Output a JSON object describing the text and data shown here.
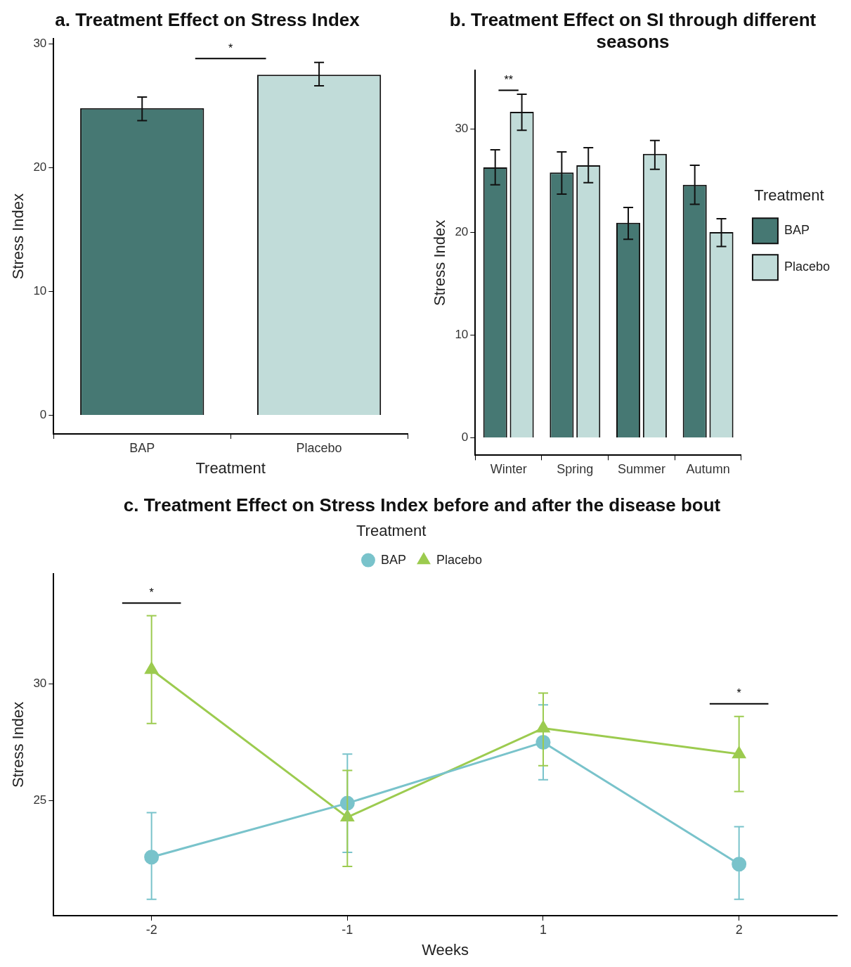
{
  "chart_data": [
    {
      "type": "bar",
      "title": "a. Treatment Effect on Stress Index",
      "xlabel": "Treatment",
      "ylabel": "Stress Index",
      "categories": [
        "BAP",
        "Placebo"
      ],
      "values": [
        24.8,
        27.5
      ],
      "colors": [
        "#467873",
        "#c1dcd9"
      ],
      "errors": [
        [
          23.8,
          25.7
        ],
        [
          26.6,
          28.5
        ]
      ],
      "ylim": [
        -1.5,
        30.4
      ],
      "yticks": [
        0,
        10,
        20,
        30
      ],
      "grid": false,
      "legend": false,
      "annotations": [
        "*"
      ]
    },
    {
      "type": "bar",
      "title": "b. Treatment Effect on SI through different seasons",
      "ylabel": "Stress Index",
      "legend_title": "Treatment",
      "categories": [
        "Winter",
        "Spring",
        "Summer",
        "Autumn"
      ],
      "series": [
        {
          "name": "BAP",
          "color": "#467873",
          "values": [
            26.3,
            25.8,
            20.9,
            24.6
          ],
          "errors": [
            [
              24.6,
              28.0
            ],
            [
              23.7,
              27.8
            ],
            [
              19.3,
              22.4
            ],
            [
              22.7,
              26.5
            ]
          ]
        },
        {
          "name": "Placebo",
          "color": "#c1dcd9",
          "values": [
            31.7,
            26.5,
            27.6,
            20.0
          ],
          "errors": [
            [
              29.9,
              33.4
            ],
            [
              24.8,
              28.2
            ],
            [
              26.1,
              28.9
            ],
            [
              18.6,
              21.3
            ]
          ]
        }
      ],
      "ylim": [
        -1.7,
        35.7
      ],
      "yticks": [
        0,
        10,
        20,
        30
      ],
      "grid": false,
      "legend": "right",
      "annotations": [
        "**"
      ]
    },
    {
      "type": "line",
      "title": "c. Treatment Effect on Stress Index before and after the disease bout",
      "xlabel": "Weeks",
      "ylabel": "Stress Index",
      "legend_title": "Treatment",
      "categories": [
        "-2",
        "-1",
        "1",
        "2"
      ],
      "series": [
        {
          "name": "BAP",
          "color": "#79c3cb",
          "marker": "circle",
          "values": [
            22.6,
            24.9,
            27.5,
            22.3
          ],
          "errors": [
            [
              20.8,
              24.5
            ],
            [
              22.8,
              27.0
            ],
            [
              25.9,
              29.1
            ],
            [
              20.8,
              23.9
            ]
          ]
        },
        {
          "name": "Placebo",
          "color": "#9ccb4f",
          "marker": "triangle",
          "values": [
            30.6,
            24.3,
            28.1,
            27.0
          ],
          "errors": [
            [
              28.3,
              32.9
            ],
            [
              22.2,
              26.3
            ],
            [
              26.5,
              29.6
            ],
            [
              25.4,
              28.6
            ]
          ]
        }
      ],
      "ylim": [
        20.1,
        34.7
      ],
      "yticks": [
        25,
        30
      ],
      "grid": false,
      "legend": "top",
      "line_style": "solid",
      "annotations": [
        "*",
        "*"
      ]
    }
  ]
}
